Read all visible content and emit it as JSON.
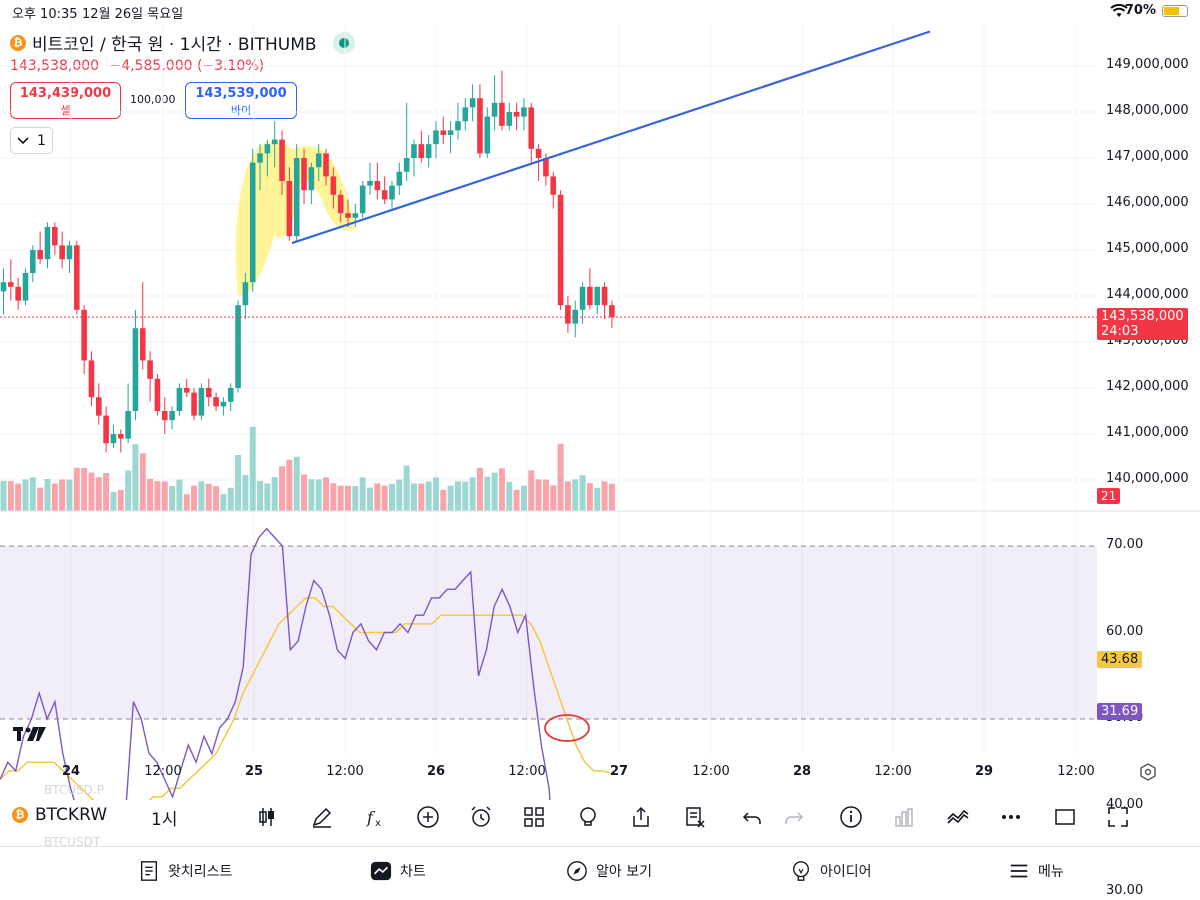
{
  "status_bar": {
    "time": "오후 10:35",
    "date": "12월 26일 목요일",
    "battery": "70%"
  },
  "header": {
    "coin_glyph": "₿",
    "symbol_title": "비트코인 / 한국 원 · 1시간 · BITHUMB",
    "last_price": "143,538,000",
    "change": "−4,585,000 (−3.10%)",
    "sell_price": "143,439,000",
    "sell_label": "셀",
    "spread": "100,000",
    "buy_price": "143,539,000",
    "buy_label": "바이",
    "interval_count": "1"
  },
  "price_axis": {
    "labels": [
      "149,000,000",
      "148,000,000",
      "147,000,000",
      "146,000,000",
      "145,000,000",
      "144,000,000",
      "143,000,000",
      "142,000,000",
      "141,000,000",
      "140,000,000"
    ],
    "current_tag": "143,538,000",
    "countdown": "24:03",
    "volume_tag": "21"
  },
  "rsi_axis": {
    "labels": [
      "70.00",
      "60.00",
      "50.00",
      "40.00",
      "30.00"
    ],
    "ma_tag": "43.68",
    "rsi_tag": "31.69"
  },
  "time_axis": [
    {
      "label": "24",
      "bold": true
    },
    {
      "label": "12:00",
      "bold": false
    },
    {
      "label": "25",
      "bold": true
    },
    {
      "label": "12:00",
      "bold": false
    },
    {
      "label": "26",
      "bold": true
    },
    {
      "label": "12:00",
      "bold": false
    },
    {
      "label": "27",
      "bold": true
    },
    {
      "label": "12:00",
      "bold": false
    },
    {
      "label": "28",
      "bold": true
    },
    {
      "label": "12:00",
      "bold": false
    },
    {
      "label": "29",
      "bold": true
    },
    {
      "label": "12:00",
      "bold": false
    }
  ],
  "toolbar": {
    "symbol": "BTCKRW",
    "interval": "1시",
    "ghost_top": "BTCUSD.P",
    "ghost_bottom": "BTCUSDT"
  },
  "bottom_nav": {
    "watchlist": "왓치리스트",
    "chart": "차트",
    "explore": "알아 보기",
    "ideas": "아이디어",
    "menu": "메뉴"
  },
  "colors": {
    "up": "#26a69a",
    "down": "#f23645",
    "trendline": "#2962ff",
    "rsi": "#7e57c2",
    "rsi_ma": "#f5c842",
    "highlight": "#fff176"
  },
  "chart_data": {
    "type": "candlestick",
    "interval": "1h",
    "price_range": [
      139600000,
      149700000
    ],
    "rsi_range": [
      27,
      71
    ],
    "candles": [
      [
        144.1,
        144.6,
        143.6,
        144.3
      ],
      [
        144.3,
        144.8,
        143.9,
        144.2
      ],
      [
        144.2,
        144.4,
        143.7,
        143.9
      ],
      [
        143.9,
        144.6,
        143.8,
        144.5
      ],
      [
        144.5,
        145.1,
        144.3,
        145.0
      ],
      [
        145.0,
        145.4,
        144.7,
        144.8
      ],
      [
        144.8,
        145.6,
        144.6,
        145.5
      ],
      [
        145.5,
        145.6,
        144.9,
        145.1
      ],
      [
        145.1,
        145.4,
        144.6,
        144.8
      ],
      [
        144.8,
        145.2,
        144.5,
        145.1
      ],
      [
        145.1,
        145.2,
        143.6,
        143.7
      ],
      [
        143.7,
        143.8,
        142.3,
        142.6
      ],
      [
        142.6,
        142.8,
        141.6,
        141.8
      ],
      [
        141.8,
        142.1,
        141.2,
        141.4
      ],
      [
        141.4,
        141.6,
        140.6,
        140.8
      ],
      [
        140.8,
        141.2,
        140.7,
        141.0
      ],
      [
        141.0,
        141.1,
        140.6,
        140.9
      ],
      [
        140.9,
        142.1,
        140.8,
        141.5
      ],
      [
        141.5,
        143.7,
        141.3,
        143.3
      ],
      [
        143.3,
        144.3,
        142.4,
        142.6
      ],
      [
        142.6,
        142.8,
        141.7,
        142.2
      ],
      [
        142.2,
        142.3,
        141.4,
        141.5
      ],
      [
        141.5,
        141.8,
        141.0,
        141.3
      ],
      [
        141.3,
        141.6,
        141.1,
        141.5
      ],
      [
        141.5,
        142.1,
        141.4,
        142.0
      ],
      [
        142.0,
        142.2,
        141.8,
        141.9
      ],
      [
        141.9,
        142.0,
        141.3,
        141.4
      ],
      [
        141.4,
        142.1,
        141.3,
        142.0
      ],
      [
        142.0,
        142.2,
        141.6,
        141.8
      ],
      [
        141.8,
        141.9,
        141.5,
        141.6
      ],
      [
        141.6,
        141.8,
        141.4,
        141.7
      ],
      [
        141.7,
        142.1,
        141.5,
        142.0
      ],
      [
        142.0,
        143.9,
        141.9,
        143.8
      ],
      [
        143.8,
        144.5,
        143.5,
        144.3
      ],
      [
        144.3,
        147.2,
        144.1,
        146.9
      ],
      [
        146.9,
        147.3,
        146.3,
        147.1
      ],
      [
        147.1,
        147.4,
        146.6,
        147.3
      ],
      [
        147.3,
        147.8,
        146.8,
        147.4
      ],
      [
        147.4,
        147.6,
        146.2,
        146.5
      ],
      [
        146.5,
        146.8,
        145.2,
        145.3
      ],
      [
        145.3,
        147.3,
        145.2,
        147.0
      ],
      [
        147.0,
        147.2,
        146.0,
        146.3
      ],
      [
        146.3,
        146.9,
        146.0,
        146.8
      ],
      [
        146.8,
        147.3,
        146.5,
        147.1
      ],
      [
        147.1,
        147.2,
        146.4,
        146.6
      ],
      [
        146.6,
        146.8,
        145.9,
        146.2
      ],
      [
        146.2,
        146.3,
        145.6,
        145.8
      ],
      [
        145.8,
        146.1,
        145.5,
        145.7
      ],
      [
        145.7,
        146.0,
        145.5,
        145.8
      ],
      [
        145.8,
        146.5,
        145.7,
        146.4
      ],
      [
        146.4,
        146.9,
        146.2,
        146.5
      ],
      [
        146.5,
        146.9,
        146.1,
        146.3
      ],
      [
        146.3,
        146.6,
        146.0,
        146.1
      ],
      [
        146.1,
        146.5,
        145.9,
        146.4
      ],
      [
        146.4,
        146.9,
        146.2,
        146.7
      ],
      [
        146.7,
        148.2,
        146.5,
        147.0
      ],
      [
        147.0,
        147.4,
        146.6,
        147.3
      ],
      [
        147.3,
        147.6,
        146.9,
        147.0
      ],
      [
        147.0,
        147.5,
        146.8,
        147.3
      ],
      [
        147.3,
        147.8,
        147.0,
        147.6
      ],
      [
        147.6,
        147.9,
        147.3,
        147.5
      ],
      [
        147.5,
        147.8,
        147.1,
        147.6
      ],
      [
        147.6,
        148.2,
        147.4,
        147.8
      ],
      [
        147.8,
        148.3,
        147.6,
        148.1
      ],
      [
        148.1,
        148.6,
        147.8,
        148.3
      ],
      [
        148.3,
        148.6,
        147.0,
        147.1
      ],
      [
        147.1,
        148.1,
        147.0,
        147.9
      ],
      [
        147.9,
        148.8,
        147.6,
        148.2
      ],
      [
        148.2,
        148.9,
        147.6,
        147.7
      ],
      [
        147.7,
        148.2,
        147.6,
        148.0
      ],
      [
        148.0,
        148.2,
        147.6,
        147.9
      ],
      [
        147.9,
        148.3,
        147.6,
        148.1
      ],
      [
        148.1,
        148.2,
        146.9,
        147.2
      ],
      [
        147.2,
        147.3,
        146.5,
        147.0
      ],
      [
        147.0,
        147.1,
        146.4,
        146.6
      ],
      [
        146.6,
        146.7,
        145.9,
        146.2
      ],
      [
        146.2,
        146.3,
        143.7,
        143.8
      ],
      [
        143.8,
        144.0,
        143.2,
        143.4
      ],
      [
        143.4,
        143.9,
        143.1,
        143.7
      ],
      [
        143.7,
        144.3,
        143.4,
        144.2
      ],
      [
        144.2,
        144.6,
        143.7,
        143.8
      ],
      [
        143.8,
        144.2,
        143.6,
        144.2
      ],
      [
        144.2,
        144.3,
        143.5,
        143.8
      ],
      [
        143.8,
        143.9,
        143.3,
        143.54
      ]
    ],
    "rsi": [
      43,
      45,
      44,
      48,
      50,
      53,
      50,
      52,
      46,
      42,
      39,
      35,
      33,
      35,
      32,
      34,
      39,
      52,
      50,
      46,
      45,
      43,
      41,
      44,
      47,
      45,
      48,
      46,
      49,
      50,
      52,
      56,
      69,
      71,
      72,
      71,
      70,
      58,
      59,
      63,
      66,
      65,
      62,
      58,
      57,
      60,
      61,
      59,
      58,
      60,
      60,
      61,
      60,
      62,
      62,
      64,
      64,
      65,
      65,
      66,
      67,
      55,
      58,
      63,
      65,
      63,
      60,
      62,
      54,
      47,
      42,
      29,
      28,
      30,
      32,
      34,
      33,
      32,
      31.69
    ],
    "rsi_ma": [
      43,
      44,
      44,
      45,
      45,
      45,
      45,
      44,
      43,
      42,
      41,
      40,
      39,
      39,
      38,
      39,
      40,
      41,
      41,
      42,
      42,
      43,
      44,
      45,
      46,
      48,
      50,
      53,
      55,
      57,
      59,
      61,
      62,
      63,
      64,
      64,
      63,
      63,
      62,
      61,
      60,
      60,
      60,
      60,
      60,
      61,
      61,
      61,
      61,
      62,
      62,
      62,
      62,
      62,
      62,
      62,
      62,
      62,
      62,
      61,
      59,
      56,
      53,
      50,
      47,
      45,
      44,
      44,
      43.68
    ],
    "trendline": {
      "start_price": 145150000,
      "end_price": 149750000
    }
  }
}
